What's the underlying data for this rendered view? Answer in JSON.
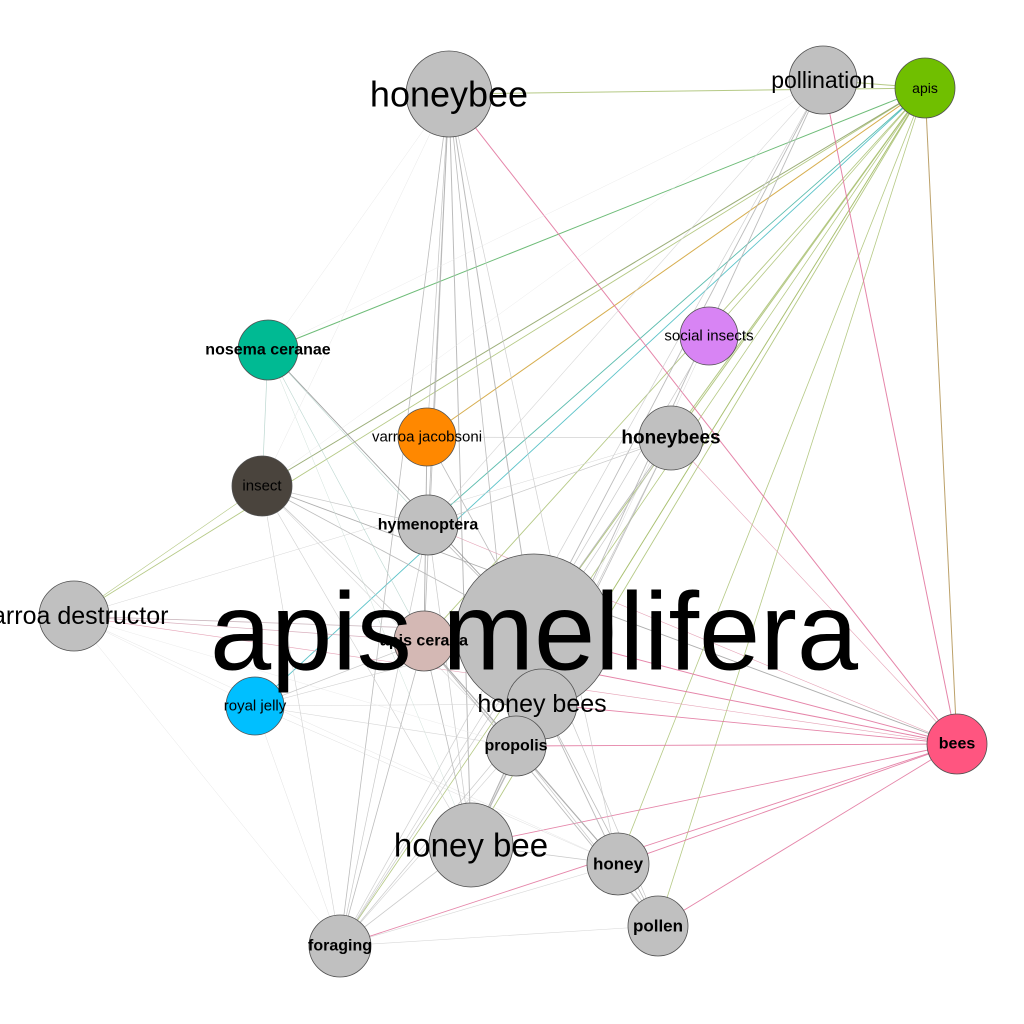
{
  "nodes": [
    {
      "id": "apis-mellifera",
      "label": "apis mellifera",
      "color": "#c0c0c0"
    },
    {
      "id": "honeybee",
      "label": "honeybee",
      "color": "#c0c0c0"
    },
    {
      "id": "pollination",
      "label": "pollination",
      "color": "#c0c0c0"
    },
    {
      "id": "apis",
      "label": "apis",
      "color": "#70bf00"
    },
    {
      "id": "social-insects",
      "label": "social insects",
      "color": "#d884f4"
    },
    {
      "id": "nosema-ceranae",
      "label": "nosema ceranae",
      "color": "#00ba93"
    },
    {
      "id": "varroa-jacobsoni",
      "label": "varroa jacobsoni",
      "color": "#ff8800"
    },
    {
      "id": "honeybees",
      "label": "honeybees",
      "color": "#c0c0c0"
    },
    {
      "id": "insect",
      "label": "insect",
      "color": "#4a443d"
    },
    {
      "id": "hymenoptera",
      "label": "hymenoptera",
      "color": "#c0c0c0"
    },
    {
      "id": "varroa-destructor",
      "label": "varroa destructor",
      "color": "#c0c0c0"
    },
    {
      "id": "apis-cerana",
      "label": "apis cerana",
      "color": "#d4b8b4"
    },
    {
      "id": "royal-jelly",
      "label": "royal jelly",
      "color": "#00bfff"
    },
    {
      "id": "honey-bees",
      "label": "honey bees",
      "color": "#c0c0c0"
    },
    {
      "id": "propolis",
      "label": "propolis",
      "color": "#c0c0c0"
    },
    {
      "id": "bees",
      "label": "bees",
      "color": "#ff5580"
    },
    {
      "id": "honey-bee",
      "label": "honey bee",
      "color": "#c0c0c0"
    },
    {
      "id": "honey",
      "label": "honey",
      "color": "#c0c0c0"
    },
    {
      "id": "pollen",
      "label": "pollen",
      "color": "#c0c0c0"
    },
    {
      "id": "foraging",
      "label": "foraging",
      "color": "#c0c0c0"
    }
  ]
}
